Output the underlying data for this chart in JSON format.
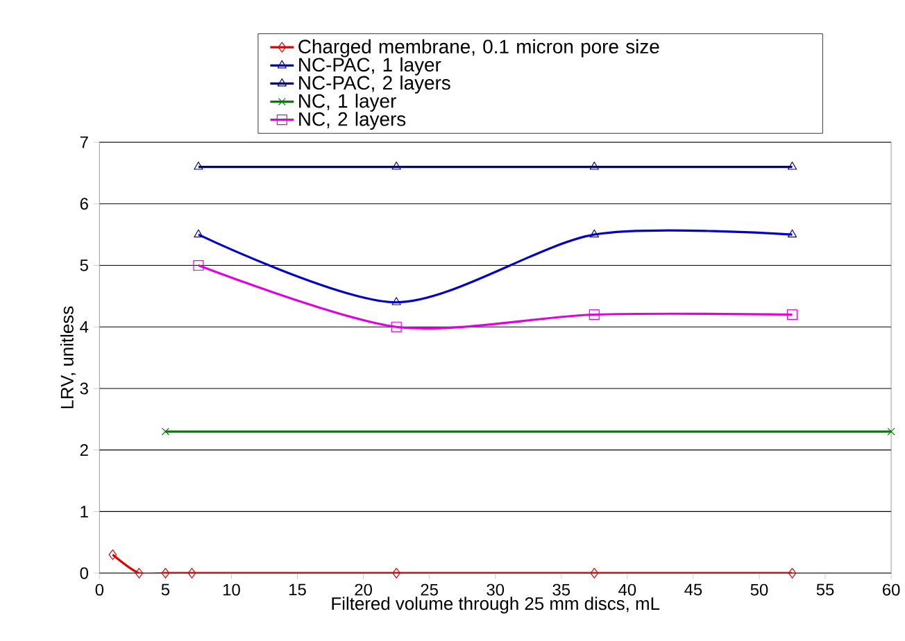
{
  "chart_data": {
    "type": "line",
    "xlabel": "Filtered volume through 25 mm discs, mL",
    "ylabel": "LRV, unitless",
    "xlim": [
      0,
      60
    ],
    "xticks": [
      0,
      5,
      10,
      15,
      20,
      25,
      30,
      35,
      40,
      45,
      50,
      55,
      60
    ],
    "ylim": [
      0,
      7
    ],
    "yticks": [
      0,
      1,
      2,
      3,
      4,
      5,
      6,
      7
    ],
    "grid": "y",
    "legend": "top",
    "series": [
      {
        "name": "Charged membrane, 0.1 micron pore size",
        "color": "#e00000",
        "marker": "diamond",
        "x": [
          1,
          3,
          5,
          7,
          22.5,
          37.5,
          52.5
        ],
        "values": [
          0.3,
          0,
          0,
          0,
          0,
          0,
          0
        ]
      },
      {
        "name": "NC-PAC, 1 layer",
        "color": "#0000c8",
        "marker": "triangle",
        "x": [
          7.5,
          22.5,
          37.5,
          52.5
        ],
        "values": [
          5.5,
          4.4,
          5.5,
          5.5
        ]
      },
      {
        "name": "NC-PAC, 2 layers",
        "color": "#000080",
        "marker": "triangle",
        "x": [
          7.5,
          22.5,
          37.5,
          52.5
        ],
        "values": [
          6.6,
          6.6,
          6.6,
          6.6
        ]
      },
      {
        "name": "NC, 1 layer",
        "color": "#008000",
        "marker": "cross",
        "x": [
          5,
          60
        ],
        "values": [
          2.3,
          2.3
        ]
      },
      {
        "name": "NC, 2 layers",
        "color": "#e000e0",
        "marker": "square",
        "x": [
          7.5,
          22.5,
          37.5,
          52.5
        ],
        "values": [
          5,
          4,
          4.2,
          4.2
        ]
      }
    ]
  }
}
